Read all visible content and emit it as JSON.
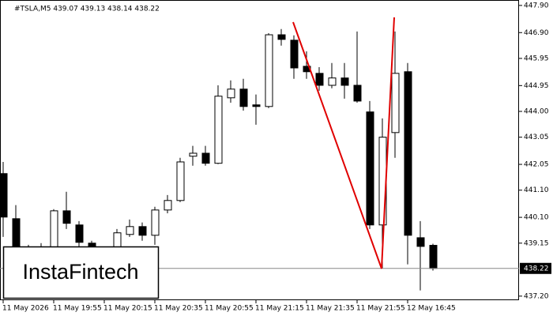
{
  "chart_data": {
    "type": "candlestick",
    "title": "#TSLA,M5  439.07 439.13 438.14 438.22",
    "categories": [
      "11 May 2026",
      null,
      null,
      null,
      "11 May 19:55",
      null,
      null,
      null,
      "11 May 20:15",
      null,
      null,
      null,
      "11 May 20:35",
      null,
      null,
      null,
      "11 May 20:55",
      null,
      null,
      null,
      "11 May 21:15",
      null,
      null,
      null,
      "11 May 21:35",
      null,
      null,
      null,
      "11 May 21:55",
      null,
      null,
      null,
      "12 May 16:45",
      null,
      null
    ],
    "open": [
      441.71,
      440.05,
      438.98,
      438.66,
      438.66,
      440.34,
      439.82,
      439.15,
      438.74,
      438.66,
      439.47,
      439.76,
      439.44,
      440.37,
      440.72,
      442.35,
      442.46,
      442.09,
      444.5,
      444.82,
      444.24,
      444.18,
      446.82,
      446.62,
      445.66,
      445.4,
      444.96,
      445.23,
      444.96,
      443.98,
      439.82,
      443.22,
      445.46,
      439.35,
      439.07
    ],
    "high": [
      442.14,
      440.55,
      439.09,
      439.15,
      440.4,
      441.04,
      439.96,
      439.24,
      438.86,
      439.67,
      440.02,
      439.91,
      440.49,
      440.92,
      442.29,
      442.73,
      442.73,
      444.96,
      445.14,
      445.2,
      444.62,
      446.88,
      447.03,
      446.8,
      446.21,
      445.63,
      445.78,
      445.78,
      446.94,
      444.38,
      443.74,
      446.94,
      445.78,
      439.96,
      439.13
    ],
    "low": [
      439.38,
      438.22,
      438.37,
      438.22,
      438.51,
      439.67,
      438.86,
      438.37,
      438.51,
      438.51,
      439.38,
      439.24,
      439.09,
      440.25,
      440.66,
      442.0,
      442.0,
      442.06,
      444.32,
      444.03,
      443.51,
      444.12,
      446.42,
      445.2,
      445.2,
      444.76,
      444.85,
      444.47,
      444.32,
      439.67,
      438.22,
      442.29,
      438.37,
      437.41,
      438.14
    ],
    "close": [
      440.11,
      439.0,
      438.6,
      438.77,
      440.34,
      439.88,
      439.18,
      438.71,
      438.63,
      439.53,
      439.76,
      439.44,
      440.37,
      440.72,
      442.14,
      442.46,
      442.09,
      444.56,
      444.82,
      444.18,
      444.18,
      446.82,
      446.65,
      445.6,
      445.46,
      444.96,
      445.23,
      444.96,
      444.38,
      439.82,
      443.05,
      445.4,
      439.44,
      439.03,
      438.22
    ],
    "up_color": "#ffffff",
    "down_color": "#000000",
    "ylim": [
      437.05,
      448.1
    ],
    "yticks": [
      {
        "value": 447.9,
        "label": "447.90"
      },
      {
        "value": 446.9,
        "label": "446.90"
      },
      445.95,
      444.95,
      {
        "value": 444,
        "label": "444.00"
      },
      443.05,
      442.05,
      {
        "value": 441.1,
        "label": "441.10"
      },
      {
        "value": 440.1,
        "label": "440.10"
      },
      439.15,
      {
        "value": 437.2,
        "label": "437.20"
      }
    ],
    "price_line": 438.22
  },
  "logo": "InstaFintech"
}
